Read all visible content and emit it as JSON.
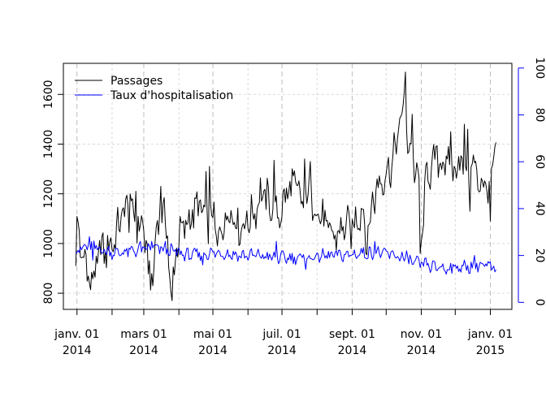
{
  "chart_data": {
    "type": "line",
    "title": "",
    "xlabel": "",
    "ylabel": "",
    "x_start": "2013-12-31",
    "x_end": "2015-01-06",
    "xlim": [
      "2013-12-20",
      "2015-01-20"
    ],
    "x_ticks": [
      {
        "date": "2014-01-01",
        "line1": "janv. 01",
        "line2": "2014"
      },
      {
        "date": "2014-03-01",
        "line1": "mars 01",
        "line2": "2014"
      },
      {
        "date": "2014-05-01",
        "line1": "mai 01",
        "line2": "2014"
      },
      {
        "date": "2014-07-01",
        "line1": "juil. 01",
        "line2": "2014"
      },
      {
        "date": "2014-09-01",
        "line1": "sept. 01",
        "line2": "2014"
      },
      {
        "date": "2014-11-01",
        "line1": "nov. 01",
        "line2": "2014"
      },
      {
        "date": "2015-01-01",
        "line1": "janv. 01",
        "line2": "2015"
      }
    ],
    "minor_x_ticks": [
      "2014-02-01",
      "2014-04-01",
      "2014-06-01",
      "2014-08-01",
      "2014-10-01",
      "2014-12-01"
    ],
    "left_axis": {
      "ylim": [
        735,
        1725
      ],
      "ticks": [
        800,
        1000,
        1200,
        1400,
        1600
      ],
      "color": "#000000"
    },
    "right_axis": {
      "ylim": [
        -3,
        102
      ],
      "ticks": [
        0,
        20,
        40,
        60,
        80,
        100
      ],
      "color": "#0000ff"
    },
    "grid": true,
    "legend": {
      "position": "top-left"
    },
    "series": [
      {
        "name": "Passages",
        "axis": "left",
        "color": "#000000",
        "anchors": [
          [
            "2013-12-31",
            950
          ],
          [
            "2014-01-01",
            1055
          ],
          [
            "2014-01-03",
            1045
          ],
          [
            "2014-01-05",
            930
          ],
          [
            "2014-01-08",
            950
          ],
          [
            "2014-01-11",
            870
          ],
          [
            "2014-01-14",
            840
          ],
          [
            "2014-01-18",
            900
          ],
          [
            "2014-01-22",
            990
          ],
          [
            "2014-01-26",
            960
          ],
          [
            "2014-01-30",
            1000
          ],
          [
            "2014-02-03",
            1010
          ],
          [
            "2014-02-08",
            1090
          ],
          [
            "2014-02-13",
            1150
          ],
          [
            "2014-02-18",
            1110
          ],
          [
            "2014-02-24",
            1080
          ],
          [
            "2014-03-01",
            1060
          ],
          [
            "2014-03-05",
            900
          ],
          [
            "2014-03-08",
            830
          ],
          [
            "2014-03-12",
            1050
          ],
          [
            "2014-03-17",
            1140
          ],
          [
            "2014-03-22",
            1040
          ],
          [
            "2014-03-25",
            770
          ],
          [
            "2014-03-30",
            1000
          ],
          [
            "2014-04-05",
            1060
          ],
          [
            "2014-04-12",
            1110
          ],
          [
            "2014-04-19",
            1160
          ],
          [
            "2014-04-26",
            1080
          ],
          [
            "2014-05-01",
            1120
          ],
          [
            "2014-05-05",
            1000
          ],
          [
            "2014-05-10",
            1080
          ],
          [
            "2014-05-17",
            1140
          ],
          [
            "2014-05-24",
            1060
          ],
          [
            "2014-05-31",
            1090
          ],
          [
            "2014-06-07",
            1130
          ],
          [
            "2014-06-12",
            1200
          ],
          [
            "2014-06-18",
            1180
          ],
          [
            "2014-06-25",
            1100
          ],
          [
            "2014-07-01",
            1140
          ],
          [
            "2014-07-05",
            1200
          ],
          [
            "2014-07-12",
            1250
          ],
          [
            "2014-07-18",
            1160
          ],
          [
            "2014-07-25",
            1200
          ],
          [
            "2014-07-31",
            1140
          ],
          [
            "2014-08-06",
            1100
          ],
          [
            "2014-08-12",
            1040
          ],
          [
            "2014-08-18",
            1030
          ],
          [
            "2014-08-25",
            1070
          ],
          [
            "2014-09-01",
            1060
          ],
          [
            "2014-09-05",
            1100
          ],
          [
            "2014-09-10",
            1150
          ],
          [
            "2014-09-14",
            1000
          ],
          [
            "2014-09-19",
            1170
          ],
          [
            "2014-09-24",
            1230
          ],
          [
            "2014-09-28",
            1270
          ],
          [
            "2014-10-02",
            1290
          ],
          [
            "2014-10-06",
            1320
          ],
          [
            "2014-10-10",
            1400
          ],
          [
            "2014-10-14",
            1500
          ],
          [
            "2014-10-17",
            1580
          ],
          [
            "2014-10-20",
            1420
          ],
          [
            "2014-10-24",
            1350
          ],
          [
            "2014-10-27",
            1290
          ],
          [
            "2014-10-30",
            1230
          ],
          [
            "2014-11-01",
            980
          ],
          [
            "2014-11-03",
            1150
          ],
          [
            "2014-11-06",
            1280
          ],
          [
            "2014-11-10",
            1300
          ],
          [
            "2014-11-15",
            1350
          ],
          [
            "2014-11-20",
            1320
          ],
          [
            "2014-11-25",
            1330
          ],
          [
            "2014-11-30",
            1300
          ],
          [
            "2014-12-06",
            1340
          ],
          [
            "2014-12-12",
            1300
          ],
          [
            "2014-12-17",
            1310
          ],
          [
            "2014-12-22",
            1250
          ],
          [
            "2014-12-27",
            1240
          ],
          [
            "2014-12-30",
            1220
          ],
          [
            "2015-01-02",
            1280
          ],
          [
            "2015-01-06",
            1390
          ]
        ],
        "amplitude": 85,
        "spikes": [
          [
            "2014-01-12",
            840
          ],
          [
            "2014-02-17",
            1200
          ],
          [
            "2014-02-22",
            1210
          ],
          [
            "2014-03-09",
            830
          ],
          [
            "2014-03-16",
            1230
          ],
          [
            "2014-03-26",
            770
          ],
          [
            "2014-04-25",
            1290
          ],
          [
            "2014-04-28",
            1310
          ],
          [
            "2014-06-24",
            1335
          ],
          [
            "2014-07-21",
            1340
          ],
          [
            "2014-07-26",
            1330
          ],
          [
            "2014-09-23",
            1260
          ],
          [
            "2014-10-18",
            1690
          ],
          [
            "2014-10-24",
            1520
          ],
          [
            "2014-10-31",
            960
          ],
          [
            "2014-11-02",
            1040
          ],
          [
            "2014-11-27",
            1450
          ],
          [
            "2014-12-09",
            1480
          ],
          [
            "2014-12-12",
            1460
          ],
          [
            "2014-12-14",
            1130
          ],
          [
            "2015-01-01",
            1090
          ]
        ]
      },
      {
        "name": "Taux d'hospitalisation",
        "axis": "right",
        "color": "#0000ff",
        "anchors": [
          [
            "2013-12-31",
            22
          ],
          [
            "2014-01-05",
            23
          ],
          [
            "2014-01-15",
            24
          ],
          [
            "2014-01-25",
            22
          ],
          [
            "2014-02-05",
            21
          ],
          [
            "2014-02-20",
            22
          ],
          [
            "2014-03-10",
            23
          ],
          [
            "2014-03-25",
            22
          ],
          [
            "2014-04-10",
            20
          ],
          [
            "2014-04-25",
            21
          ],
          [
            "2014-05-10",
            21
          ],
          [
            "2014-05-25",
            20
          ],
          [
            "2014-06-10",
            20
          ],
          [
            "2014-06-25",
            19
          ],
          [
            "2014-07-10",
            19
          ],
          [
            "2014-07-25",
            19
          ],
          [
            "2014-08-10",
            20
          ],
          [
            "2014-08-25",
            20
          ],
          [
            "2014-09-10",
            21
          ],
          [
            "2014-09-25",
            21
          ],
          [
            "2014-10-10",
            20
          ],
          [
            "2014-10-25",
            17
          ],
          [
            "2014-11-10",
            15
          ],
          [
            "2014-11-25",
            15
          ],
          [
            "2014-12-10",
            15
          ],
          [
            "2014-12-25",
            16
          ],
          [
            "2015-01-06",
            14
          ]
        ],
        "amplitude": 3,
        "spikes": [
          [
            "2014-01-12",
            28
          ],
          [
            "2014-01-15",
            18
          ],
          [
            "2014-02-26",
            26
          ],
          [
            "2014-03-08",
            26
          ],
          [
            "2014-03-20",
            26
          ],
          [
            "2014-04-22",
            16
          ],
          [
            "2014-06-26",
            26
          ],
          [
            "2014-07-22",
            14
          ],
          [
            "2014-09-21",
            26
          ],
          [
            "2014-10-19",
            22
          ],
          [
            "2014-11-05",
            19
          ],
          [
            "2014-11-23",
            12
          ],
          [
            "2014-12-18",
            20
          ],
          [
            "2015-01-05",
            13
          ]
        ]
      }
    ]
  }
}
